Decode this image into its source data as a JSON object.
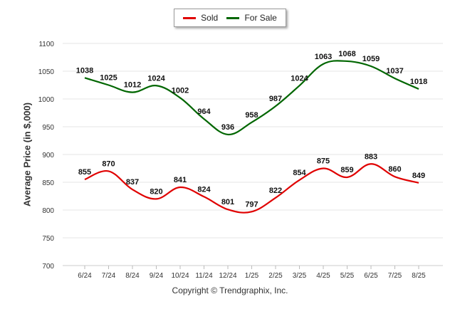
{
  "chart_data": {
    "type": "line",
    "title": "",
    "xlabel": "",
    "ylabel": "Average Price (in $,000)",
    "ylim": [
      700,
      1100
    ],
    "yticks": [
      700,
      750,
      800,
      850,
      900,
      950,
      1000,
      1050,
      1100
    ],
    "categories": [
      "6/24",
      "7/24",
      "8/24",
      "9/24",
      "10/24",
      "11/24",
      "12/24",
      "1/25",
      "2/25",
      "3/25",
      "4/25",
      "5/25",
      "6/25",
      "7/25",
      "8/25"
    ],
    "series": [
      {
        "name": "Sold",
        "color": "#e00000",
        "values": [
          855,
          870,
          837,
          820,
          841,
          824,
          801,
          797,
          822,
          854,
          875,
          859,
          883,
          860,
          849
        ]
      },
      {
        "name": "For Sale",
        "color": "#006600",
        "values": [
          1038,
          1025,
          1012,
          1024,
          1002,
          964,
          936,
          958,
          987,
          1024,
          1063,
          1068,
          1059,
          1037,
          1018
        ]
      }
    ],
    "grid": true,
    "legend_position": "top-center"
  },
  "footer": {
    "copyright": "Copyright © Trendgraphix, Inc."
  }
}
